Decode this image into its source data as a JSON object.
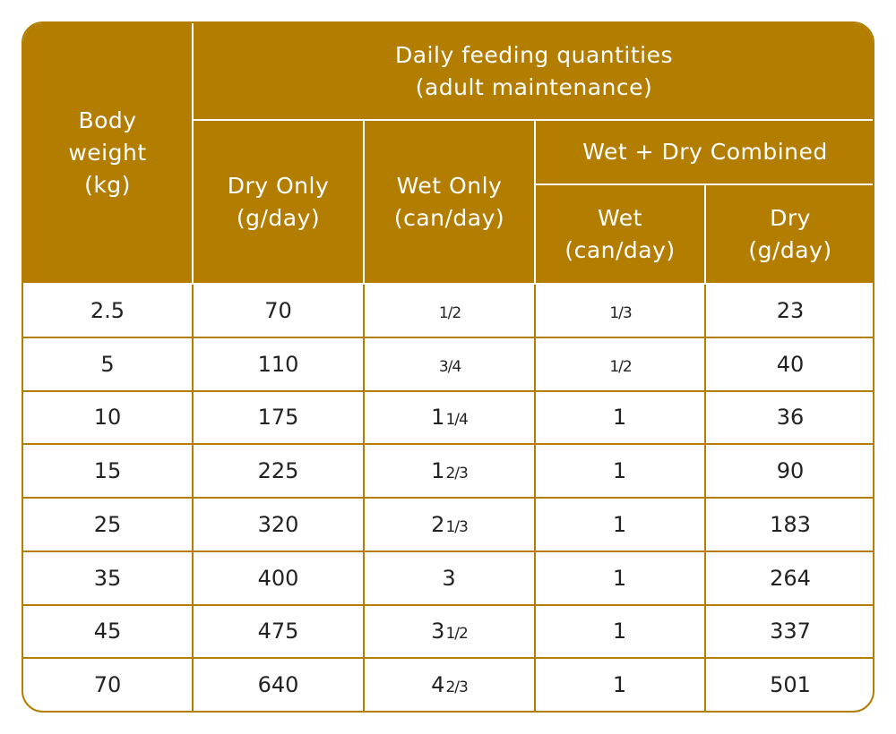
{
  "header": {
    "body_weight": "Body weight (kg)",
    "daily": "Daily feeding quantities (adult maintenance)",
    "dry_only": "Dry Only (g/day)",
    "wet_only": "Wet Only (can/day)",
    "combined": "Wet + Dry Combined",
    "combined_wet": "Wet (can/day)",
    "combined_dry": "Dry (g/day)"
  },
  "rows": [
    {
      "weight": "2.5",
      "dry": "70",
      "wet": {
        "whole": "",
        "frac": "1/2"
      },
      "cwet": {
        "whole": "",
        "frac": "1/3"
      },
      "cdry": "23"
    },
    {
      "weight": "5",
      "dry": "110",
      "wet": {
        "whole": "",
        "frac": "3/4"
      },
      "cwet": {
        "whole": "",
        "frac": "1/2"
      },
      "cdry": "40"
    },
    {
      "weight": "10",
      "dry": "175",
      "wet": {
        "whole": "1",
        "frac": "1/4"
      },
      "cwet": {
        "whole": "1",
        "frac": ""
      },
      "cdry": "36"
    },
    {
      "weight": "15",
      "dry": "225",
      "wet": {
        "whole": "1",
        "frac": "2/3"
      },
      "cwet": {
        "whole": "1",
        "frac": ""
      },
      "cdry": "90"
    },
    {
      "weight": "25",
      "dry": "320",
      "wet": {
        "whole": "2",
        "frac": "1/3"
      },
      "cwet": {
        "whole": "1",
        "frac": ""
      },
      "cdry": "183"
    },
    {
      "weight": "35",
      "dry": "400",
      "wet": {
        "whole": "3",
        "frac": ""
      },
      "cwet": {
        "whole": "1",
        "frac": ""
      },
      "cdry": "264"
    },
    {
      "weight": "45",
      "dry": "475",
      "wet": {
        "whole": "3",
        "frac": "1/2"
      },
      "cwet": {
        "whole": "1",
        "frac": ""
      },
      "cdry": "337"
    },
    {
      "weight": "70",
      "dry": "640",
      "wet": {
        "whole": "4",
        "frac": "2/3"
      },
      "cwet": {
        "whole": "1",
        "frac": ""
      },
      "cdry": "501"
    }
  ],
  "colors": {
    "accent": "#B37D00",
    "text": "#222222"
  }
}
